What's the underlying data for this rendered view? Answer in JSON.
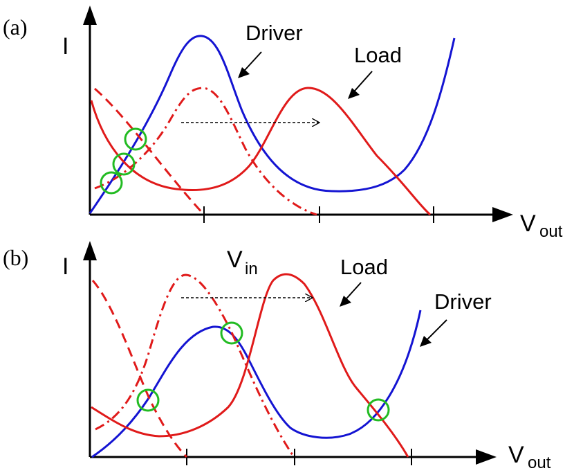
{
  "panels": [
    {
      "label": "(a)",
      "y_axis_label": "I",
      "x_axis_label": {
        "main": "V",
        "sub": "out"
      },
      "annotations": [
        "Driver",
        "Load"
      ]
    },
    {
      "label": "(b)",
      "y_axis_label": "I",
      "x_axis_label": {
        "main": "V",
        "sub": "out"
      },
      "vin_label": {
        "main": "V",
        "sub": "in"
      },
      "annotations": [
        "Load",
        "Driver"
      ]
    }
  ],
  "colors": {
    "driver_curve": "#1414d2",
    "load_curve": "#e01a1a",
    "intersection_marker": "#22bb22",
    "axis": "#000000"
  },
  "icons": [
    "arrow-icon",
    "dashed-shift-arrow-icon",
    "intersection-circle-icon"
  ]
}
